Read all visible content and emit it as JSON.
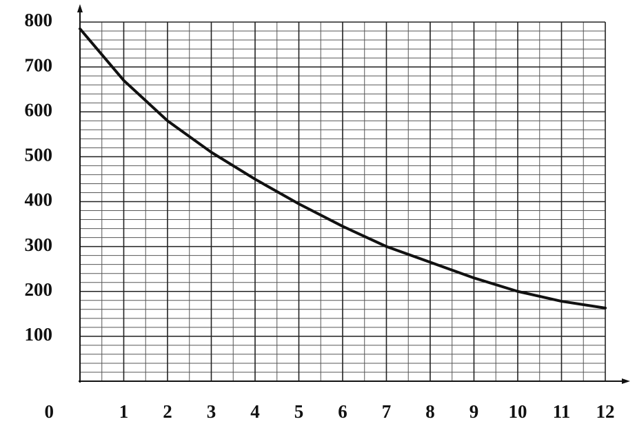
{
  "chart_data": {
    "type": "line",
    "x": [
      0,
      1,
      2,
      3,
      4,
      5,
      6,
      7,
      8,
      9,
      10,
      11,
      12
    ],
    "series": [
      {
        "color": "#111111",
        "values": [
          785,
          670,
          580,
          510,
          450,
          395,
          345,
          300,
          265,
          230,
          200,
          178,
          163
        ]
      }
    ],
    "xlim": [
      0,
      12
    ],
    "ylim": [
      0,
      800
    ],
    "xticks": [
      1,
      2,
      3,
      4,
      5,
      6,
      7,
      8,
      9,
      10,
      11,
      12
    ],
    "yticks": [
      0,
      100,
      200,
      300,
      400,
      500,
      600,
      700,
      800
    ],
    "grid": true
  }
}
